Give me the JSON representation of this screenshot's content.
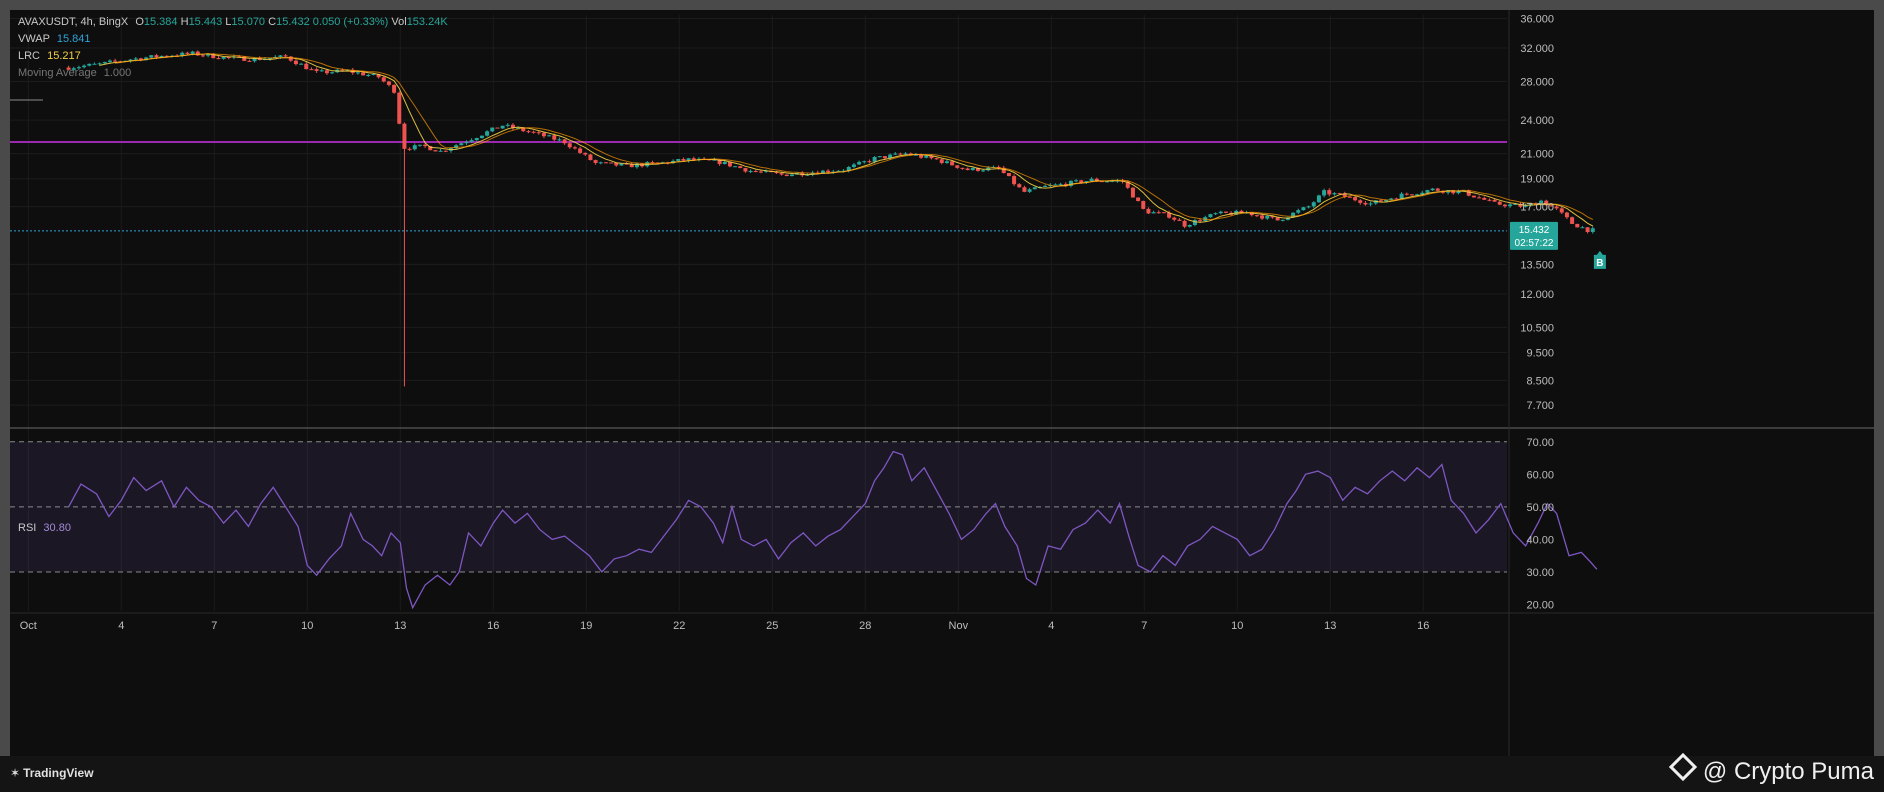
{
  "header": {
    "symbol": "AVAXUSDT, 4h, BingX",
    "open_label": "O",
    "open": "15.384",
    "high_label": "H",
    "high": "15.443",
    "low_label": "L",
    "low": "15.070",
    "close_label": "C",
    "close": "15.432",
    "change": "0.050 (+0.33%)",
    "vol_label": "Vol",
    "vol": "153.24K"
  },
  "indicators": {
    "vwap_label": "VWAP",
    "vwap_value": "15.841",
    "lrc_label": "LRC",
    "lrc_value": "15.217",
    "mavg_label": "Moving Average",
    "mavg_value": "1.000"
  },
  "price_tag": {
    "price": "15.432",
    "countdown": "02:57:22"
  },
  "signal_marker": "B",
  "rsi": {
    "label": "RSI",
    "value": "30.80"
  },
  "footer": {
    "brand": "TradingView",
    "credit": "@ Crypto Puma"
  },
  "colors": {
    "up": "#26a69a",
    "down": "#ef5350",
    "resistance": "#9c27b0",
    "rsi_line": "#7e57c2",
    "current_price": "#2ea3d6"
  },
  "chart_data": {
    "type": "candlestick",
    "timeframe": "4h",
    "price_axis": {
      "scale": "log",
      "range": [
        7.2,
        36.5
      ],
      "ticks": [
        "36.000",
        "32.000",
        "28.000",
        "24.000",
        "21.000",
        "19.000",
        "17.000",
        "15.432",
        "13.500",
        "12.000",
        "10.500",
        "9.500",
        "8.500",
        "7.700"
      ]
    },
    "time_axis": {
      "ticks": [
        "Oct",
        "4",
        "7",
        "10",
        "13",
        "16",
        "19",
        "22",
        "25",
        "28",
        "Nov",
        "4",
        "7",
        "10",
        "13",
        "16"
      ]
    },
    "resistance_level": 22.0,
    "current_price": 15.432,
    "close_path": [
      {
        "day": 0.0,
        "c": 29.6
      },
      {
        "day": 1.0,
        "c": 30.0
      },
      {
        "day": 2.0,
        "c": 30.6
      },
      {
        "day": 3.0,
        "c": 31.0
      },
      {
        "day": 4.0,
        "c": 31.3
      },
      {
        "day": 5.0,
        "c": 30.8
      },
      {
        "day": 6.0,
        "c": 30.6
      },
      {
        "day": 7.0,
        "c": 30.9
      },
      {
        "day": 8.0,
        "c": 29.0
      },
      {
        "day": 9.0,
        "c": 29.2
      },
      {
        "day": 10.0,
        "c": 28.5
      },
      {
        "day": 10.5,
        "c": 27.0
      },
      {
        "day": 10.8,
        "c": 21.5
      },
      {
        "day": 11.5,
        "c": 21.6
      },
      {
        "day": 12.0,
        "c": 21.2
      },
      {
        "day": 13.0,
        "c": 22.3
      },
      {
        "day": 14.0,
        "c": 23.5
      },
      {
        "day": 15.0,
        "c": 22.8
      },
      {
        "day": 16.0,
        "c": 22.0
      },
      {
        "day": 17.0,
        "c": 20.2
      },
      {
        "day": 18.0,
        "c": 20.0
      },
      {
        "day": 19.0,
        "c": 20.2
      },
      {
        "day": 20.0,
        "c": 20.5
      },
      {
        "day": 21.0,
        "c": 20.3
      },
      {
        "day": 22.0,
        "c": 19.6
      },
      {
        "day": 23.0,
        "c": 19.3
      },
      {
        "day": 24.0,
        "c": 19.5
      },
      {
        "day": 25.0,
        "c": 19.7
      },
      {
        "day": 26.0,
        "c": 20.6
      },
      {
        "day": 27.0,
        "c": 21.0
      },
      {
        "day": 28.0,
        "c": 20.5
      },
      {
        "day": 29.0,
        "c": 19.7
      },
      {
        "day": 30.0,
        "c": 19.8
      },
      {
        "day": 30.8,
        "c": 18.0
      },
      {
        "day": 31.5,
        "c": 18.4
      },
      {
        "day": 33.0,
        "c": 18.9
      },
      {
        "day": 34.0,
        "c": 18.8
      },
      {
        "day": 34.7,
        "c": 16.7
      },
      {
        "day": 35.5,
        "c": 16.4
      },
      {
        "day": 36.0,
        "c": 15.8
      },
      {
        "day": 37.0,
        "c": 16.5
      },
      {
        "day": 38.0,
        "c": 16.6
      },
      {
        "day": 39.0,
        "c": 16.1
      },
      {
        "day": 40.0,
        "c": 17.0
      },
      {
        "day": 40.5,
        "c": 18.0
      },
      {
        "day": 41.0,
        "c": 17.8
      },
      {
        "day": 42.0,
        "c": 17.2
      },
      {
        "day": 43.0,
        "c": 17.8
      },
      {
        "day": 44.0,
        "c": 18.2
      },
      {
        "day": 45.0,
        "c": 18.0
      },
      {
        "day": 46.0,
        "c": 17.2
      },
      {
        "day": 47.0,
        "c": 17.0
      },
      {
        "day": 47.5,
        "c": 17.4
      },
      {
        "day": 48.0,
        "c": 16.8
      },
      {
        "day": 48.5,
        "c": 15.9
      },
      {
        "day": 49.0,
        "c": 15.5
      },
      {
        "day": 49.3,
        "c": 15.43
      }
    ],
    "flash_wick_low": 8.3,
    "rsi_series": {
      "levels": [
        70,
        50,
        30
      ],
      "range": [
        18,
        73
      ],
      "ticks": [
        "70.00",
        "60.00",
        "50.00",
        "40.00",
        "30.00",
        "20.00"
      ],
      "values": [
        {
          "day": 0.0,
          "v": 50
        },
        {
          "day": 0.4,
          "v": 57
        },
        {
          "day": 0.9,
          "v": 54
        },
        {
          "day": 1.3,
          "v": 47
        },
        {
          "day": 1.7,
          "v": 52
        },
        {
          "day": 2.1,
          "v": 59
        },
        {
          "day": 2.5,
          "v": 55
        },
        {
          "day": 3.0,
          "v": 58
        },
        {
          "day": 3.4,
          "v": 50
        },
        {
          "day": 3.8,
          "v": 56
        },
        {
          "day": 4.2,
          "v": 52
        },
        {
          "day": 4.6,
          "v": 50
        },
        {
          "day": 5.0,
          "v": 45
        },
        {
          "day": 5.4,
          "v": 49
        },
        {
          "day": 5.8,
          "v": 44
        },
        {
          "day": 6.2,
          "v": 51
        },
        {
          "day": 6.6,
          "v": 56
        },
        {
          "day": 7.0,
          "v": 50
        },
        {
          "day": 7.4,
          "v": 44
        },
        {
          "day": 7.7,
          "v": 32
        },
        {
          "day": 8.0,
          "v": 29
        },
        {
          "day": 8.4,
          "v": 34
        },
        {
          "day": 8.8,
          "v": 38
        },
        {
          "day": 9.1,
          "v": 48
        },
        {
          "day": 9.5,
          "v": 40
        },
        {
          "day": 9.8,
          "v": 38
        },
        {
          "day": 10.1,
          "v": 35
        },
        {
          "day": 10.4,
          "v": 42
        },
        {
          "day": 10.7,
          "v": 39
        },
        {
          "day": 10.9,
          "v": 25
        },
        {
          "day": 11.1,
          "v": 19
        },
        {
          "day": 11.5,
          "v": 26
        },
        {
          "day": 11.9,
          "v": 29
        },
        {
          "day": 12.3,
          "v": 26
        },
        {
          "day": 12.6,
          "v": 30
        },
        {
          "day": 12.9,
          "v": 42
        },
        {
          "day": 13.3,
          "v": 38
        },
        {
          "day": 13.7,
          "v": 45
        },
        {
          "day": 14.0,
          "v": 49
        },
        {
          "day": 14.4,
          "v": 45
        },
        {
          "day": 14.8,
          "v": 48
        },
        {
          "day": 15.2,
          "v": 43
        },
        {
          "day": 15.6,
          "v": 40
        },
        {
          "day": 16.0,
          "v": 41
        },
        {
          "day": 16.4,
          "v": 38
        },
        {
          "day": 16.8,
          "v": 35
        },
        {
          "day": 17.2,
          "v": 30
        },
        {
          "day": 17.6,
          "v": 34
        },
        {
          "day": 18.0,
          "v": 35
        },
        {
          "day": 18.4,
          "v": 37
        },
        {
          "day": 18.8,
          "v": 36
        },
        {
          "day": 19.2,
          "v": 41
        },
        {
          "day": 19.6,
          "v": 46
        },
        {
          "day": 20.0,
          "v": 52
        },
        {
          "day": 20.4,
          "v": 50
        },
        {
          "day": 20.8,
          "v": 45
        },
        {
          "day": 21.1,
          "v": 39
        },
        {
          "day": 21.4,
          "v": 50
        },
        {
          "day": 21.7,
          "v": 40
        },
        {
          "day": 22.1,
          "v": 38
        },
        {
          "day": 22.5,
          "v": 40
        },
        {
          "day": 22.9,
          "v": 34
        },
        {
          "day": 23.3,
          "v": 39
        },
        {
          "day": 23.7,
          "v": 42
        },
        {
          "day": 24.1,
          "v": 38
        },
        {
          "day": 24.5,
          "v": 41
        },
        {
          "day": 24.9,
          "v": 43
        },
        {
          "day": 25.3,
          "v": 47
        },
        {
          "day": 25.7,
          "v": 51
        },
        {
          "day": 26.0,
          "v": 58
        },
        {
          "day": 26.3,
          "v": 62
        },
        {
          "day": 26.6,
          "v": 67
        },
        {
          "day": 26.9,
          "v": 66
        },
        {
          "day": 27.2,
          "v": 58
        },
        {
          "day": 27.6,
          "v": 62
        },
        {
          "day": 28.0,
          "v": 55
        },
        {
          "day": 28.4,
          "v": 48
        },
        {
          "day": 28.8,
          "v": 40
        },
        {
          "day": 29.2,
          "v": 43
        },
        {
          "day": 29.6,
          "v": 48
        },
        {
          "day": 29.9,
          "v": 51
        },
        {
          "day": 30.2,
          "v": 44
        },
        {
          "day": 30.6,
          "v": 38
        },
        {
          "day": 30.9,
          "v": 28
        },
        {
          "day": 31.2,
          "v": 26
        },
        {
          "day": 31.6,
          "v": 38
        },
        {
          "day": 32.0,
          "v": 37
        },
        {
          "day": 32.4,
          "v": 43
        },
        {
          "day": 32.8,
          "v": 45
        },
        {
          "day": 33.2,
          "v": 49
        },
        {
          "day": 33.6,
          "v": 45
        },
        {
          "day": 33.9,
          "v": 51
        },
        {
          "day": 34.2,
          "v": 41
        },
        {
          "day": 34.5,
          "v": 32
        },
        {
          "day": 34.9,
          "v": 30
        },
        {
          "day": 35.3,
          "v": 35
        },
        {
          "day": 35.7,
          "v": 32
        },
        {
          "day": 36.1,
          "v": 38
        },
        {
          "day": 36.5,
          "v": 40
        },
        {
          "day": 36.9,
          "v": 44
        },
        {
          "day": 37.3,
          "v": 42
        },
        {
          "day": 37.7,
          "v": 40
        },
        {
          "day": 38.1,
          "v": 35
        },
        {
          "day": 38.5,
          "v": 37
        },
        {
          "day": 38.9,
          "v": 43
        },
        {
          "day": 39.3,
          "v": 51
        },
        {
          "day": 39.6,
          "v": 55
        },
        {
          "day": 39.9,
          "v": 60
        },
        {
          "day": 40.3,
          "v": 61
        },
        {
          "day": 40.7,
          "v": 59
        },
        {
          "day": 41.1,
          "v": 52
        },
        {
          "day": 41.5,
          "v": 56
        },
        {
          "day": 41.9,
          "v": 54
        },
        {
          "day": 42.3,
          "v": 58
        },
        {
          "day": 42.7,
          "v": 61
        },
        {
          "day": 43.1,
          "v": 58
        },
        {
          "day": 43.5,
          "v": 62
        },
        {
          "day": 43.9,
          "v": 59
        },
        {
          "day": 44.3,
          "v": 63
        },
        {
          "day": 44.6,
          "v": 52
        },
        {
          "day": 45.0,
          "v": 48
        },
        {
          "day": 45.4,
          "v": 42
        },
        {
          "day": 45.8,
          "v": 46
        },
        {
          "day": 46.2,
          "v": 51
        },
        {
          "day": 46.6,
          "v": 42
        },
        {
          "day": 47.0,
          "v": 38
        },
        {
          "day": 47.4,
          "v": 45
        },
        {
          "day": 47.7,
          "v": 51
        },
        {
          "day": 48.0,
          "v": 48
        },
        {
          "day": 48.4,
          "v": 35
        },
        {
          "day": 48.8,
          "v": 36
        },
        {
          "day": 49.1,
          "v": 33
        },
        {
          "day": 49.3,
          "v": 30.8
        }
      ]
    }
  }
}
